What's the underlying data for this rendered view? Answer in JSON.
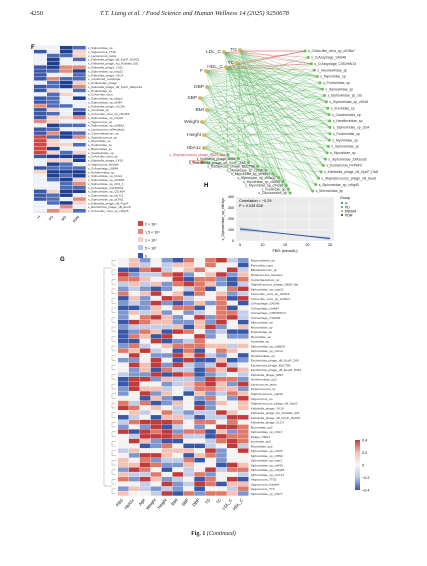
{
  "header": {
    "page_number": "4250",
    "journal": "T.T. Liang et al. / Food Science and Human Wellness 14 (2025) 9250678"
  },
  "panels": {
    "f_label": "F",
    "g_label": "G",
    "h_label": "H"
  },
  "heatmap_f": {
    "rows": [
      "s_Siphoviridae_sp",
      "s_Vagococcus_TT02",
      "s_Lactococcus_lactis",
      "s_Klebsiella_phage_vB_KpnP_Dlv622",
      "s_Klebsiella_phage_Kp_Pokalde_001",
      "s_Klebsiella_phage_YL02",
      "s_Siphoviridae_sp_ctsp22",
      "s_Klebsiella_phage_VLC4",
      "s_uncultured_cvAphage",
      "s_Podoviridae_phage",
      "s_Klebsiella_phage_vB_KpnP_HkKp01a",
      "s_Podoviridae_sp",
      "s_CrAss-like_virus",
      "s_Siphoviridae_sp_ctksp1",
      "s_Siphoviridae_sp_ctH94",
      "s_Klebsiella_phage_VLC4b",
      "s_Inoviridae_sp",
      "s_CrAss-like_virus_sp_ctKQ53",
      "s_Siphoviridae_sp_ctsp15",
      "s_Vagococcus_sp",
      "s_Siphoviridae_sp_ctNB2A",
      "s_Lactococcus_raffinolactis",
      "s_Carnimbacterium_sp",
      "s_Staphylococcus_sp",
      "s_Myoviridae_sp",
      "s_Podoviridae_sp",
      "s_Bacteroides_sp",
      "s_Caudovirales_sp",
      "s_CrAss-like_virus_sp",
      "s_Klebsiella_phage_YK19",
      "s_Vagococcus_fluvialis",
      "s_CrAssphage_LMMH",
      "s_Herelleviridae_sp",
      "s_Siphoviridae_sp_ctUxA",
      "s_Siphoviridae_sp_ctO1B3",
      "s_Siphoviridae_sp_ctK3_1",
      "s_CrAssphage_C02NW13",
      "s_Siphoviridae_sp_C01604",
      "s_Siphoviridae_sp_ctuY11",
      "s_Siphoviridae_sp_ctt79Q",
      "s_Klebsiella_phage_vB_KpnP",
      "s_Escherichia_phage_vB_EcoP",
      "s_CrAss-like_virus_sp_ctZq15"
    ],
    "columns": [
      "H",
      "PD",
      "MD",
      "PDM"
    ],
    "legend": [
      "2 × 10⁴",
      "1.5 × 10⁴",
      "1 × 10⁴",
      "5 × 10³",
      "0"
    ]
  },
  "network": {
    "left_nodes": [
      "F",
      "LDL_C",
      "TG",
      "HDL_C",
      "TC",
      "DBP",
      "SBP",
      "BMI",
      "Weight",
      "Height",
      "HbA1c",
      "FBG"
    ],
    "right_nodes": [
      "s_CrAss-like_virus_sp_ctO8w7",
      "s_CrAssphage_SAD48",
      "s_CrAssphage_C052HW13",
      "s_Herelleviridae_sp",
      "s_Myoviridae_sp",
      "s_Podoviridae_sp",
      "s_Siphoviridae_sp",
      "s_Siphoviridae_sp_ctd",
      "s_Siphoviridae_sp_ctH4A",
      "s_Inoviridae_sp",
      "s_Caudovirales_sp",
      "s_Herelleviridae_sp",
      "s_Siphoviridae_sp_ctS4",
      "s_Podoviridae_sp",
      "s_Myoviridae_sp",
      "s_Siphoviridae_sp",
      "s_Myoviridae_sp",
      "s_Siphoviridae_ZMGoost",
      "s_Escherichia_FKP8F0",
      "s_Klebsiella_phage_vB_KpnP_Dlv6",
      "s_Staphylococcus_phage_vB_SauS",
      "s_Siphoviridae_sp_ctHg65",
      "s_Microviridae_sp"
    ],
    "bottom_nodes": [
      "s_Staphylococcus_phage_SB20-16a",
      "s_Klebsiella_phage_6993",
      "s_Escherichia_phage_vB_EcoP_ZA5",
      "s_Escherichia_phage_BUCT86",
      "s_Myoviridae_sp_ctGyb",
      "s_Myoviridae_sp_ctHMs4",
      "s_Myoviridae_sp_ctGa30",
      "s_Myoviridae_sp_ctlvG9",
      "s_Myoviridae_sp_ctNcq6",
      "s_Inoviridae_sp",
      "s_Caudovirales_sp"
    ]
  },
  "scatter_h": {
    "annotation_r": "Correlation = −0.29",
    "annotation_p": "P = 0.028 628",
    "ylabel": "s_Siphoviridae_sp_ctH4gn",
    "xlabel": "FBG (mmol/L)",
    "legend_title": "Group",
    "legend_items": [
      "H",
      "PD",
      "MD/DM",
      "PDM"
    ],
    "xticks": [
      "5",
      "10",
      "15",
      "20",
      "25"
    ],
    "yticks": [
      "0",
      "100",
      "200",
      "300",
      "400"
    ]
  },
  "heatmap_g": {
    "columns": [
      "FBG",
      "HbA1c",
      "Age",
      "Weight",
      "Height",
      "BMI",
      "SBP",
      "DBP",
      "TG",
      "TC",
      "LDL_C",
      "HDL_C"
    ],
    "rows": [
      "Bacteroidetes_sp",
      "Prevotella_copri",
      "Bifidobacterium_sp",
      "Rhodococcus_fascians",
      "Carnimbacterium_sp",
      "Staphylococcus_phage_SB20-16a",
      "Siphoviridae_sp_ctsp22",
      "CrAss-like_virus_sp_ctD5x6",
      "CrAss-like_virus_sp_ctO8w7",
      "CrAssphage_SAD48",
      "CrAssphage_LMMH",
      "CrAssphage_C052HW13",
      "CrAssphage_C01604",
      "Siphoviridae_sp",
      "Microviridae_sp",
      "Podoviridae_sp",
      "Myoviridae_sp",
      "Inoviridae_sp",
      "Siphoviridae_sp_ctNB2A",
      "Siphoviridae_sp_ctUxA",
      "Herelleviridae_sp",
      "Escherichia_phage_vB_EcoP_ZA5",
      "Escherichia_phage_BUCT86",
      "Escherichia_phage_vB_EcoM_HdK1",
      "Klebsiella_phage_6993",
      "Herelleviridae_sp2",
      "Lactococcus_lactis",
      "Streptococcus_sp",
      "Staphylococcus_capitis",
      "Vagococcus_sp",
      "Staphylococcus_phage_vB_SauS",
      "Klebsiella_phage_YK19",
      "Klebsiella_phage_Kp_Pokalde_001",
      "Klebsiella_phage_vB_KpnP_Dlv622",
      "Klebsiella_phage_VLC4",
      "Myoviridae_sp2",
      "Siphoviridae_sp_ctS17",
      "Phage_HDG1",
      "Inoviridae_sp2",
      "Myoviridae_sp3",
      "Siphoviridae_sp_ctK22",
      "Siphoviridae_sp_ctH94",
      "Siphoviridae_sp_ctsp1",
      "Siphoviridae_sp_ctH4A",
      "Siphoviridae_sp_ctHg65",
      "Siphoviridae_sp_ctuY11",
      "Vagococcus_TT02",
      "Vagococcus_fluvialis",
      "Vagococcus_TT3",
      "Siphoviridae_sp_ctS77"
    ],
    "legend": [
      "0.4",
      "0.2",
      "0",
      "−0.2",
      "−0.4"
    ]
  },
  "caption": {
    "fig": "Fig. 1",
    "text": "(Continued)"
  }
}
